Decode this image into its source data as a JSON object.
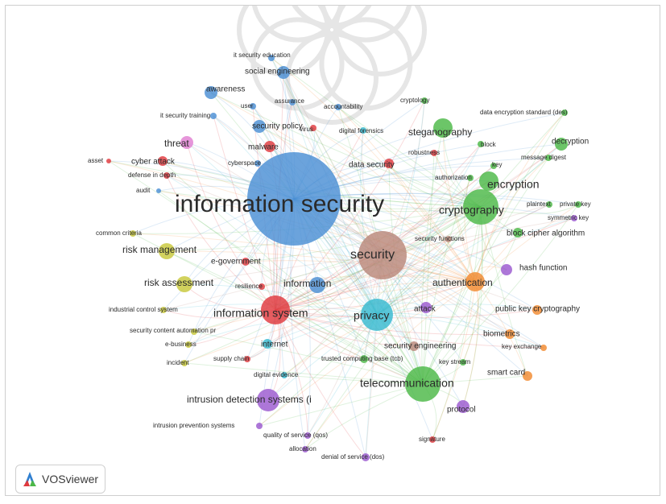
{
  "app": {
    "brand": "VOSviewer",
    "logo_icon": "vosviewer-logo-icon"
  },
  "colors": {
    "blue": "#4a8fd4",
    "red": "#e0393e",
    "green": "#4cb847",
    "yellow": "#c8c83a",
    "purple": "#9b59d0",
    "cyan": "#37b9d0",
    "orange": "#f28a30",
    "pink": "#e07fd2",
    "brown": "#b9877a",
    "light_blue": "#6aa7e0"
  },
  "nodes": [
    {
      "label": "information security",
      "color": "blue",
      "size": "xxl"
    },
    {
      "label": "security",
      "color": "brown",
      "size": "xl"
    },
    {
      "label": "cryptography",
      "color": "green",
      "size": "l"
    },
    {
      "label": "encryption",
      "color": "green",
      "size": "l"
    },
    {
      "label": "privacy",
      "color": "cyan",
      "size": "l"
    },
    {
      "label": "telecommunication",
      "color": "green",
      "size": "l"
    },
    {
      "label": "information system",
      "color": "red",
      "size": "l"
    },
    {
      "label": "authentication",
      "color": "orange",
      "size": "m"
    },
    {
      "label": "risk management",
      "color": "yellow",
      "size": "m"
    },
    {
      "label": "risk assessment",
      "color": "yellow",
      "size": "m"
    },
    {
      "label": "information",
      "color": "blue",
      "size": "m"
    },
    {
      "label": "intrusion detection systems (i",
      "color": "purple",
      "size": "m"
    },
    {
      "label": "steganography",
      "color": "green",
      "size": "m"
    },
    {
      "label": "social engineering",
      "color": "blue",
      "size": "s"
    },
    {
      "label": "awareness",
      "color": "blue",
      "size": "s"
    },
    {
      "label": "threat",
      "color": "pink",
      "size": "m"
    },
    {
      "label": "security policy",
      "color": "blue",
      "size": "s"
    },
    {
      "label": "malware",
      "color": "red",
      "size": "s"
    },
    {
      "label": "data security",
      "color": "red",
      "size": "s"
    },
    {
      "label": "attack",
      "color": "purple",
      "size": "s"
    },
    {
      "label": "protocol",
      "color": "purple",
      "size": "s"
    },
    {
      "label": "biometrics",
      "color": "orange",
      "size": "s"
    },
    {
      "label": "smart card",
      "color": "orange",
      "size": "s"
    },
    {
      "label": "decryption",
      "color": "green",
      "size": "s"
    },
    {
      "label": "hash function",
      "color": "purple",
      "size": "s"
    },
    {
      "label": "public key cryptography",
      "color": "orange",
      "size": "s"
    },
    {
      "label": "block cipher algorithm",
      "color": "green",
      "size": "s"
    },
    {
      "label": "security engineering",
      "color": "brown",
      "size": "s"
    },
    {
      "label": "e-government",
      "color": "red",
      "size": "s"
    },
    {
      "label": "internet",
      "color": "cyan",
      "size": "s"
    },
    {
      "label": "cyber attack",
      "color": "red",
      "size": "s"
    },
    {
      "label": "user",
      "color": "blue",
      "size": "xs"
    },
    {
      "label": "it security education",
      "color": "blue",
      "size": "xs"
    },
    {
      "label": "assurance",
      "color": "blue",
      "size": "xs"
    },
    {
      "label": "accountability",
      "color": "blue",
      "size": "xs"
    },
    {
      "label": "cryptology",
      "color": "green",
      "size": "xs"
    },
    {
      "label": "data encryption standard (des)",
      "color": "green",
      "size": "xs"
    },
    {
      "label": "it security training",
      "color": "blue",
      "size": "xs"
    },
    {
      "label": "virus",
      "color": "red",
      "size": "xs"
    },
    {
      "label": "digital forensics",
      "color": "cyan",
      "size": "xs"
    },
    {
      "label": "robustness",
      "color": "red",
      "size": "xs"
    },
    {
      "label": "block",
      "color": "green",
      "size": "xs"
    },
    {
      "label": "message digest",
      "color": "green",
      "size": "xs"
    },
    {
      "label": "key",
      "color": "green",
      "size": "xs"
    },
    {
      "label": "asset",
      "color": "red",
      "size": "xs"
    },
    {
      "label": "defense in depth",
      "color": "red",
      "size": "xs"
    },
    {
      "label": "audit",
      "color": "blue",
      "size": "xs"
    },
    {
      "label": "cyberspace",
      "color": "blue",
      "size": "xs"
    },
    {
      "label": "authorization",
      "color": "green",
      "size": "xs"
    },
    {
      "label": "plaintext",
      "color": "green",
      "size": "xs"
    },
    {
      "label": "private key",
      "color": "green",
      "size": "xs"
    },
    {
      "label": "symmetric key",
      "color": "purple",
      "size": "xs"
    },
    {
      "label": "common criteria",
      "color": "yellow",
      "size": "xs"
    },
    {
      "label": "security functions",
      "color": "brown",
      "size": "xs"
    },
    {
      "label": "resilience",
      "color": "red",
      "size": "xs"
    },
    {
      "label": "industrial control system",
      "color": "yellow",
      "size": "xs"
    },
    {
      "label": "security content automation pr",
      "color": "yellow",
      "size": "xs"
    },
    {
      "label": "e-business",
      "color": "yellow",
      "size": "xs"
    },
    {
      "label": "incident",
      "color": "yellow",
      "size": "xs"
    },
    {
      "label": "supply chain",
      "color": "red",
      "size": "xs"
    },
    {
      "label": "digital evidence",
      "color": "cyan",
      "size": "xs"
    },
    {
      "label": "trusted computing base (tcb)",
      "color": "green",
      "size": "xs"
    },
    {
      "label": "key stream",
      "color": "green",
      "size": "xs"
    },
    {
      "label": "key exchange",
      "color": "orange",
      "size": "xs"
    },
    {
      "label": "intrusion prevention systems",
      "color": "purple",
      "size": "xs"
    },
    {
      "label": "quality of service (qos)",
      "color": "purple",
      "size": "xs"
    },
    {
      "label": "allocation",
      "color": "purple",
      "size": "xs"
    },
    {
      "label": "denial of service (dos)",
      "color": "purple",
      "size": "xs"
    },
    {
      "label": "signature",
      "color": "red",
      "size": "xs"
    }
  ]
}
